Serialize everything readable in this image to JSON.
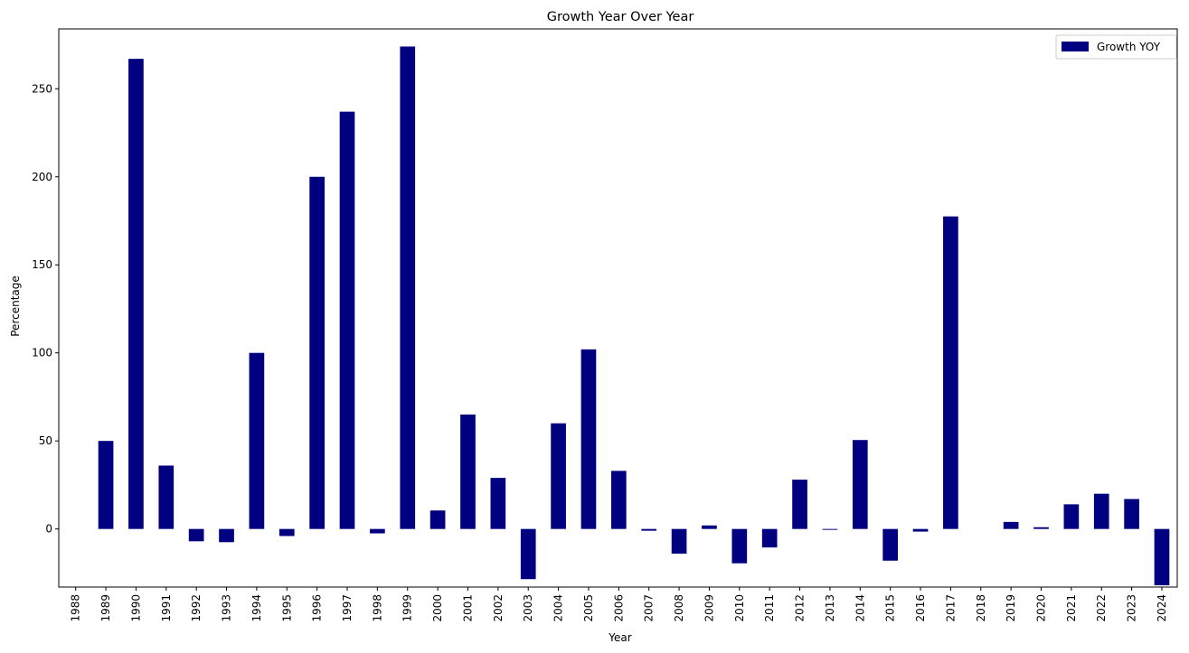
{
  "chart_data": {
    "type": "bar",
    "title": "Growth Year Over Year",
    "xlabel": "Year",
    "ylabel": "Percentage",
    "ylim": [
      -33,
      284
    ],
    "yticks": [
      0,
      50,
      100,
      150,
      200,
      250
    ],
    "categories": [
      "1988",
      "1989",
      "1990",
      "1991",
      "1992",
      "1993",
      "1994",
      "1995",
      "1996",
      "1997",
      "1998",
      "1999",
      "2000",
      "2001",
      "2002",
      "2003",
      "2004",
      "2005",
      "2006",
      "2007",
      "2008",
      "2009",
      "2010",
      "2011",
      "2012",
      "2013",
      "2014",
      "2015",
      "2016",
      "2017",
      "2018",
      "2019",
      "2020",
      "2021",
      "2022",
      "2023",
      "2024"
    ],
    "series": [
      {
        "name": "Growth YOY",
        "color": "#000080",
        "values": [
          0,
          50,
          267,
          36,
          -7,
          -7.5,
          100,
          -4,
          200,
          237,
          -2.5,
          274,
          10.5,
          65,
          29,
          -28.5,
          60,
          102,
          33,
          -1,
          -14,
          2,
          -19.5,
          -10.5,
          28,
          -0.5,
          50.5,
          -18,
          -1.5,
          177.5,
          0,
          4,
          1,
          14,
          20,
          17,
          -32
        ]
      }
    ],
    "legend": {
      "position": "top-right"
    },
    "grid": false
  }
}
